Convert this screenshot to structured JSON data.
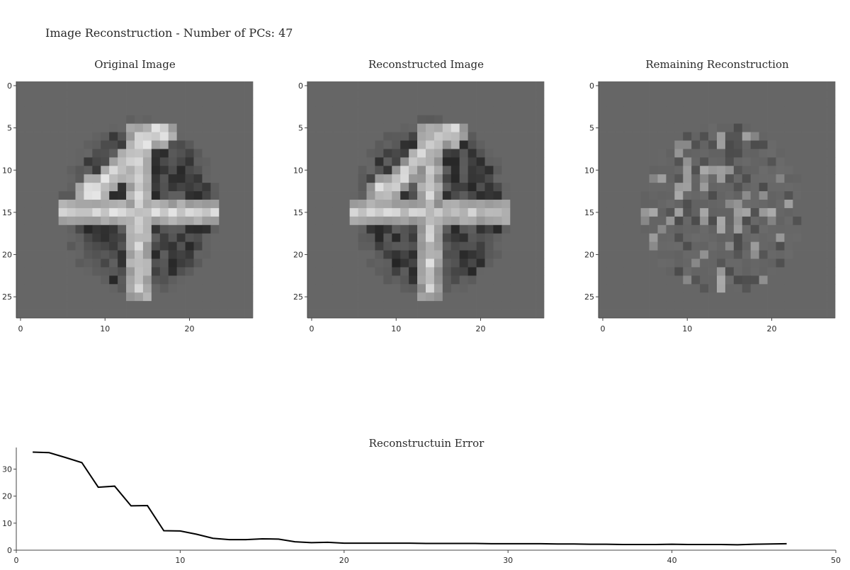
{
  "figure": {
    "title": "Image Reconstruction - Number of PCs: 47"
  },
  "colors": {
    "line": "#000000",
    "axis": "#444444",
    "pixel_low": "#141414",
    "pixel_mid": "#666666",
    "pixel_high": "#e6e6e6"
  },
  "chart_data": [
    {
      "type": "heatmap",
      "title": "Original Image",
      "colormap": "gray",
      "x_ticks": [
        0,
        10,
        20
      ],
      "y_ticks": [
        0,
        5,
        10,
        15,
        20,
        25
      ],
      "xlim": [
        -0.5,
        27.5
      ],
      "ylim": [
        27.5,
        -0.5
      ],
      "description_values": "28x28 grayscale digit '4'; background mid-gray, bright strokes forming a cross-like 4"
    },
    {
      "type": "heatmap",
      "title": "Reconstructed Image",
      "colormap": "gray",
      "x_ticks": [
        0,
        10,
        20
      ],
      "y_ticks": [
        0,
        5,
        10,
        15,
        20,
        25
      ],
      "xlim": [
        -0.5,
        27.5
      ],
      "ylim": [
        27.5,
        -0.5
      ]
    },
    {
      "type": "heatmap",
      "title": "Remaining Reconstruction",
      "colormap": "gray",
      "x_ticks": [
        0,
        10,
        20
      ],
      "y_ticks": [
        0,
        5,
        10,
        15,
        20,
        25
      ],
      "xlim": [
        -0.5,
        27.5
      ],
      "ylim": [
        27.5,
        -0.5
      ]
    },
    {
      "type": "line",
      "title": "Reconstructuin Error",
      "x": [
        1,
        2,
        3,
        4,
        5,
        6,
        7,
        8,
        9,
        10,
        11,
        12,
        13,
        14,
        15,
        16,
        17,
        18,
        19,
        20,
        21,
        22,
        23,
        24,
        25,
        26,
        27,
        28,
        29,
        30,
        31,
        32,
        33,
        34,
        35,
        36,
        37,
        38,
        39,
        40,
        41,
        42,
        43,
        44,
        45,
        46,
        47
      ],
      "y": [
        36.3,
        36.1,
        34.3,
        32.4,
        23.3,
        23.7,
        16.4,
        16.5,
        7.2,
        7.1,
        5.9,
        4.4,
        3.9,
        3.9,
        4.2,
        4.1,
        3.1,
        2.8,
        2.9,
        2.6,
        2.6,
        2.6,
        2.6,
        2.6,
        2.5,
        2.5,
        2.5,
        2.5,
        2.4,
        2.4,
        2.4,
        2.4,
        2.3,
        2.3,
        2.2,
        2.2,
        2.1,
        2.1,
        2.1,
        2.2,
        2.1,
        2.1,
        2.1,
        2.0,
        2.2,
        2.3,
        2.4
      ],
      "x_ticks": [
        0,
        10,
        20,
        30,
        40,
        50
      ],
      "y_ticks": [
        0,
        10,
        20,
        30
      ],
      "xlim": [
        0,
        50
      ],
      "ylim": [
        0,
        38
      ]
    }
  ]
}
